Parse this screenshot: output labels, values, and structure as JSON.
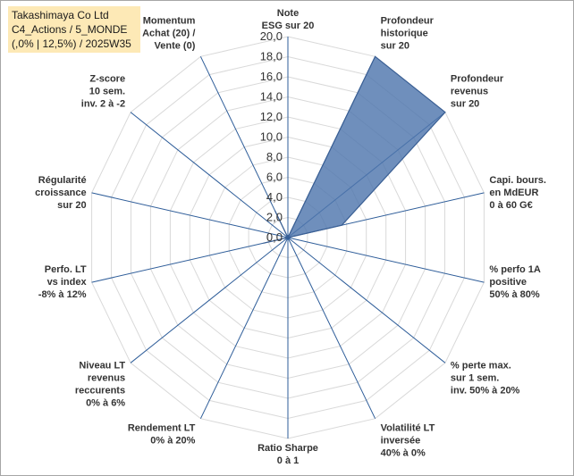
{
  "title_box": {
    "line1": "Takashimaya Co Ltd",
    "line2": "C4_Actions / 5_MONDE",
    "line3": "(,0% | 12,5%) / 2025W35"
  },
  "colors": {
    "fill": "#4f76ad",
    "stroke": "#3a5f94",
    "grid": "#d9d9d9",
    "axis": "#2e5d99"
  },
  "chart_data": {
    "type": "radar",
    "title": "",
    "rmin": 0,
    "rmax": 20,
    "grid": true,
    "tick_labels": [
      "0,0",
      "2,0",
      "4,0",
      "6,0",
      "8,0",
      "10,0",
      "12,0",
      "14,0",
      "16,0",
      "18,0",
      "20,0"
    ],
    "axes": [
      [
        "Note",
        "ESG sur 20"
      ],
      [
        "Profondeur",
        "historique",
        "sur 20"
      ],
      [
        "Profondeur",
        "revenus",
        "sur 20"
      ],
      [
        "Capi. bours.",
        "en MdEUR",
        "0 à 60 G€"
      ],
      [
        "% perfo 1A",
        "positive",
        "50% à 80%"
      ],
      [
        "% perte max.",
        "sur 1 sem.",
        "inv. 50% à 20%"
      ],
      [
        "Volatilité LT",
        "inversée",
        "40% à 0%"
      ],
      [
        "Ratio Sharpe",
        "0 à 1"
      ],
      [
        "Rendement LT",
        "0% à 20%"
      ],
      [
        "Niveau LT",
        "revenus",
        "reccurents",
        "0% à 6%"
      ],
      [
        "Perfo. LT",
        "vs index",
        "-8% à 12%"
      ],
      [
        "Régularité",
        "croissance",
        "sur 20"
      ],
      [
        "Z-score",
        "10 sem.",
        "inv. 2 à -2"
      ],
      [
        "Momentum",
        "Achat (20) /",
        "Vente (0)"
      ]
    ],
    "series": [
      {
        "values": [
          0,
          20,
          20,
          5.5,
          0,
          0,
          0,
          0,
          0,
          0,
          2.5,
          0,
          0,
          3
        ]
      }
    ]
  }
}
